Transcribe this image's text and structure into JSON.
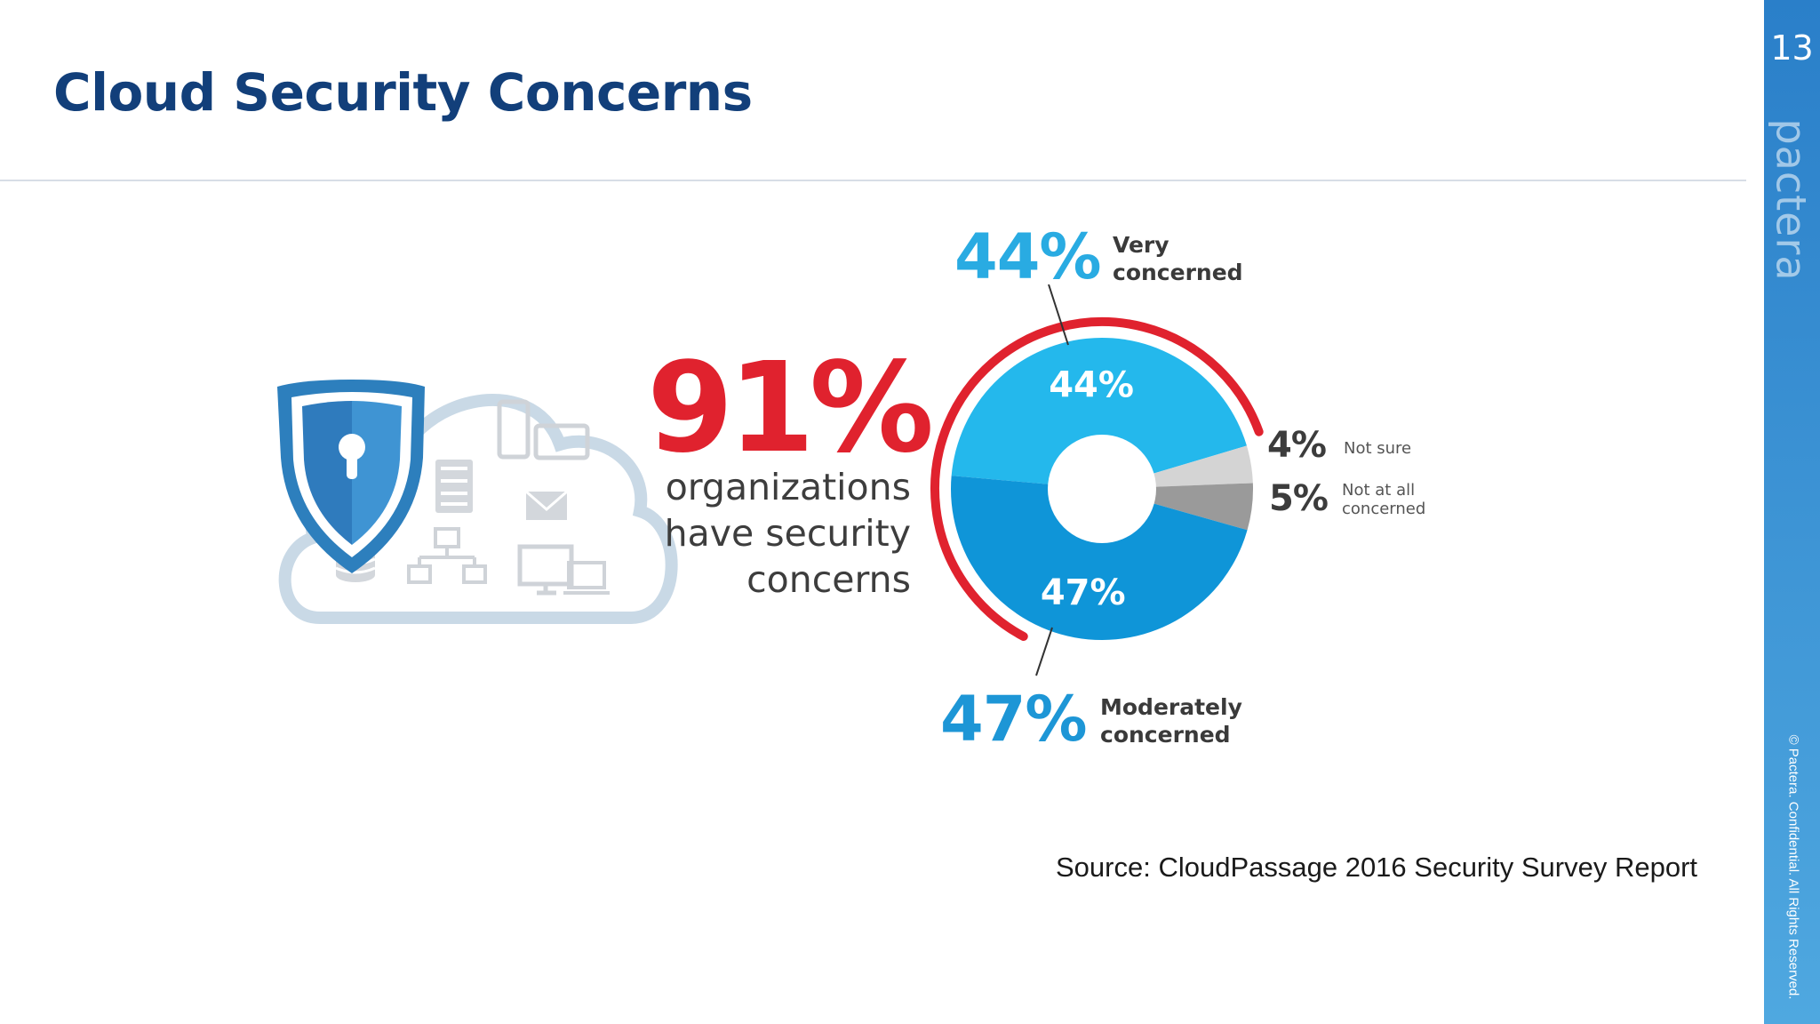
{
  "slide": {
    "title": "Cloud Security Concerns",
    "page_number": "13",
    "brand": "pactera",
    "confidential": "© Pactera. Confidential. All Rights Reserved.",
    "source": "Source: CloudPassage 2016 Security Survey Report"
  },
  "headline": {
    "value": "91%",
    "line1": "organizations",
    "line2": "have security",
    "line3": "concerns"
  },
  "callouts": {
    "very_pct": "44%",
    "very_l1": "Very",
    "very_l2": "concerned",
    "moderate_pct": "47%",
    "moderate_l1": "Moderately",
    "moderate_l2": "concerned",
    "notsure_pct": "4%",
    "notsure_l1": "Not sure",
    "notatall_pct": "5%",
    "notatall_l1": "Not at all",
    "notatall_l2": "concerned"
  },
  "icons": [
    "shield-lock-icon",
    "cloud-icon",
    "mobile-icon",
    "tablet-icon",
    "server-icon",
    "email-icon",
    "network-icon",
    "database-icon",
    "desktop-icon",
    "laptop-icon"
  ],
  "colors": {
    "very": "#24b8ec",
    "moderate": "#0f95d8",
    "not_sure": "#d4d4d4",
    "not_at_all": "#9a9a9a",
    "ring": "#e0222e",
    "title": "#123f7a"
  },
  "chart_data": {
    "type": "pie",
    "categories": [
      "Very concerned",
      "Not sure",
      "Not at all concerned",
      "Moderately concerned"
    ],
    "values": [
      44,
      4,
      5,
      47
    ],
    "labels": [
      "44%",
      "",
      "",
      "47%"
    ],
    "colors": [
      "#24b8ec",
      "#d4d4d4",
      "#9a9a9a",
      "#0f95d8"
    ]
  }
}
